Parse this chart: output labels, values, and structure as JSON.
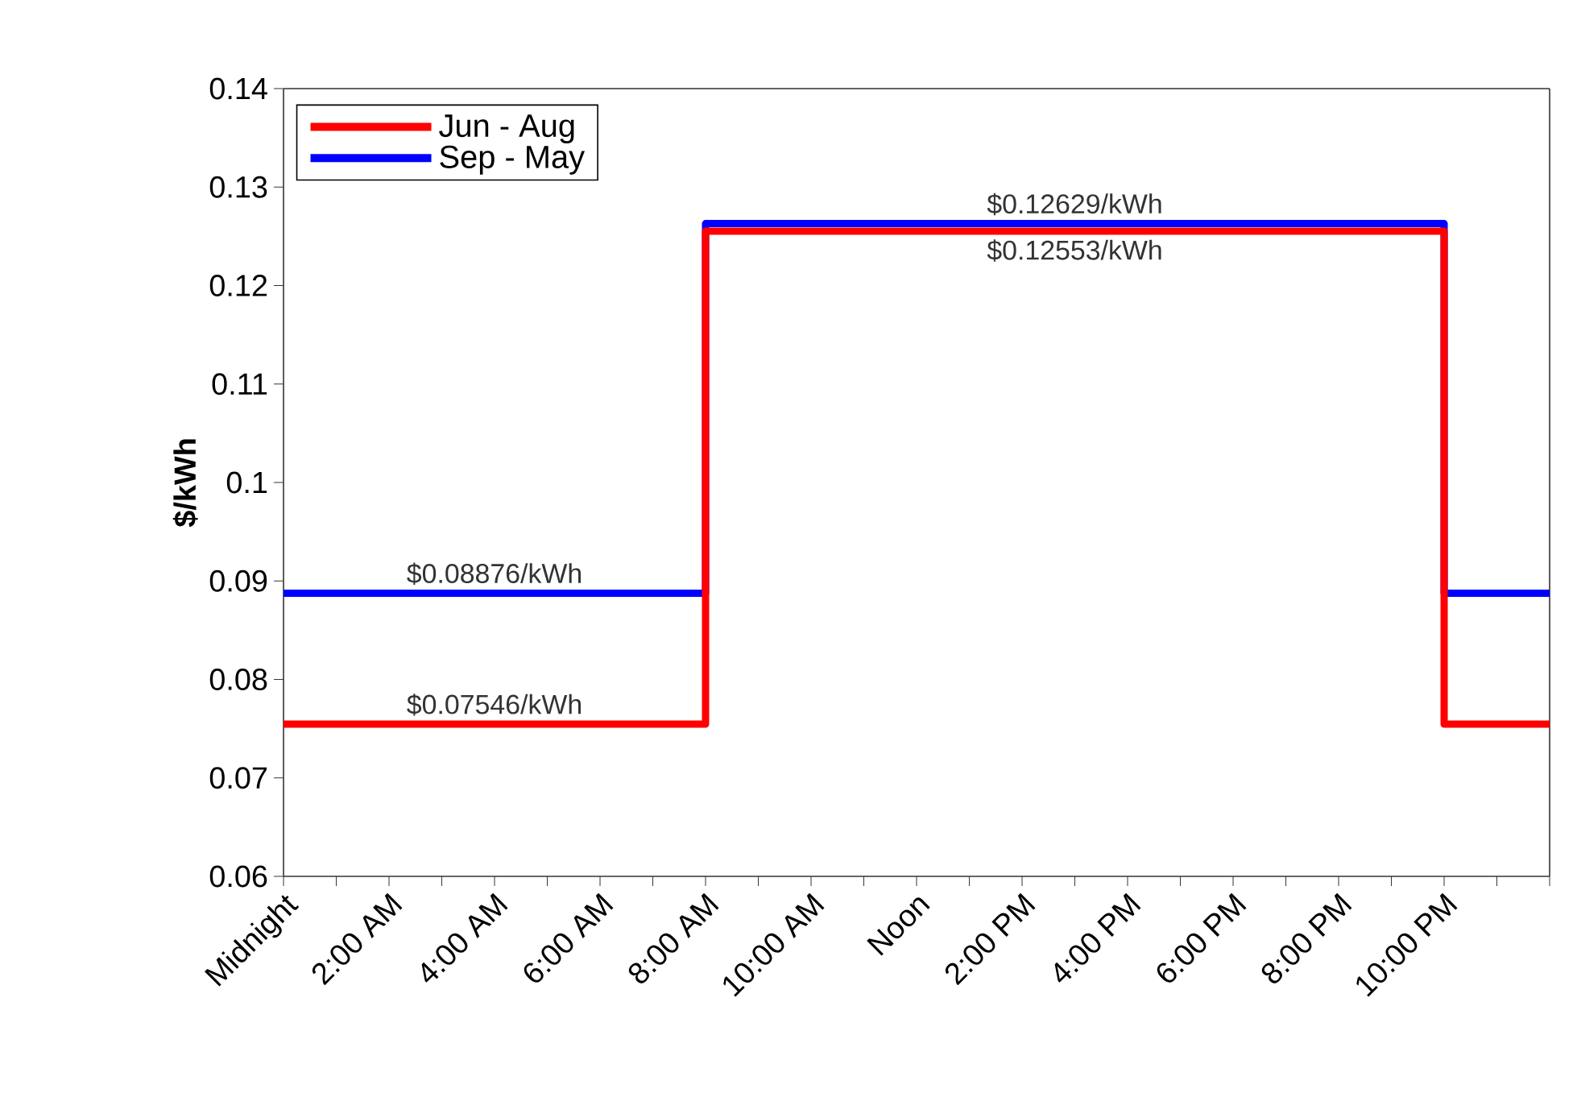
{
  "chart_data": {
    "type": "step",
    "ylabel": "$/kWh",
    "x": [
      0,
      8,
      22,
      24
    ],
    "series": [
      {
        "name": "Sep - May",
        "color": "#0000ff",
        "values": [
          0.08876,
          0.12629,
          0.08876,
          0.08876
        ]
      },
      {
        "name": "Jun - Aug",
        "color": "#ff0000",
        "values": [
          0.07546,
          0.12553,
          0.07546,
          0.07546
        ]
      }
    ],
    "xlim": [
      0,
      24
    ],
    "xticks": [
      {
        "value": 0,
        "label": "Midnight"
      },
      {
        "value": 1,
        "label": null
      },
      {
        "value": 2,
        "label": "2:00 AM"
      },
      {
        "value": 3,
        "label": null
      },
      {
        "value": 4,
        "label": "4:00 AM"
      },
      {
        "value": 5,
        "label": null
      },
      {
        "value": 6,
        "label": "6:00 AM"
      },
      {
        "value": 7,
        "label": null
      },
      {
        "value": 8,
        "label": "8:00 AM"
      },
      {
        "value": 9,
        "label": null
      },
      {
        "value": 10,
        "label": "10:00 AM"
      },
      {
        "value": 11,
        "label": null
      },
      {
        "value": 12,
        "label": "Noon"
      },
      {
        "value": 13,
        "label": null
      },
      {
        "value": 14,
        "label": "2:00 PM"
      },
      {
        "value": 15,
        "label": null
      },
      {
        "value": 16,
        "label": "4:00 PM"
      },
      {
        "value": 17,
        "label": null
      },
      {
        "value": 18,
        "label": "6:00 PM"
      },
      {
        "value": 19,
        "label": null
      },
      {
        "value": 20,
        "label": "8:00 PM"
      },
      {
        "value": 21,
        "label": null
      },
      {
        "value": 22,
        "label": "10:00 PM"
      },
      {
        "value": 23,
        "label": null
      },
      {
        "value": 24,
        "label": null
      }
    ],
    "ylim": [
      0.06,
      0.14
    ],
    "yticks": [
      0.06,
      0.07,
      0.08,
      0.09,
      {
        "value": 0.1,
        "label": "0.1"
      },
      0.11,
      0.12,
      0.13,
      0.14
    ],
    "annotations": [
      {
        "text": "$0.12629/kWh",
        "y": 0.12629
      },
      {
        "text": "$0.12553/kWh",
        "y": 0.12553
      },
      {
        "text": "$0.08876/kWh",
        "y": 0.08876
      },
      {
        "text": "$0.07546/kWh",
        "y": 0.07546
      }
    ],
    "legend": "top left",
    "grid": false,
    "line_style": "solid",
    "marker": "none"
  }
}
